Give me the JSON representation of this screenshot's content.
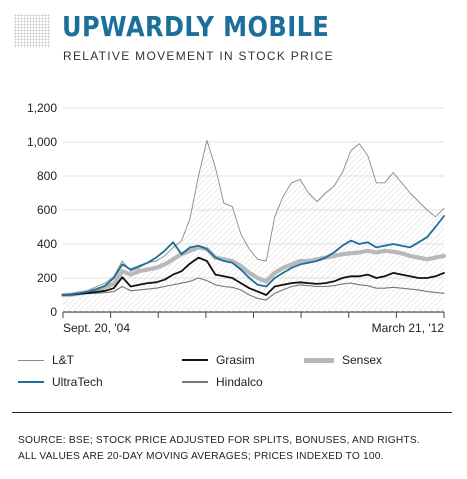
{
  "header": {
    "title": "UPWARDLY MOBILE",
    "subtitle": "RELATIVE MOVEMENT IN STOCK PRICE"
  },
  "chart_data": {
    "type": "line",
    "x_start_label": "Sept. 20, '04",
    "x_end_label": "March 21, '12",
    "y_ticks": [
      "0",
      "200",
      "400",
      "600",
      "800",
      "1,000",
      "1,200"
    ],
    "ylim": [
      0,
      1200
    ],
    "grid": "horizontal",
    "legend_position": "bottom",
    "x": [
      0,
      2,
      4,
      6,
      8,
      10,
      12,
      14,
      16,
      18,
      20,
      22,
      24,
      26,
      28,
      30,
      32,
      34,
      36,
      38,
      40,
      42,
      44,
      46,
      48,
      50,
      52,
      54,
      56,
      58,
      60,
      62,
      64,
      66,
      68,
      70,
      72,
      74,
      76,
      78,
      80,
      82,
      84,
      86,
      88,
      90
    ],
    "series": [
      {
        "name": "L&T",
        "color": "#8a8a8a",
        "width": 0.9,
        "values": [
          100,
          105,
          115,
          130,
          150,
          170,
          210,
          300,
          240,
          260,
          290,
          300,
          330,
          380,
          420,
          550,
          800,
          1010,
          850,
          640,
          620,
          460,
          370,
          310,
          300,
          560,
          680,
          760,
          780,
          700,
          650,
          700,
          740,
          820,
          950,
          990,
          920,
          760,
          760,
          820,
          760,
          700,
          650,
          600,
          560,
          610
        ]
      },
      {
        "name": "Grasim",
        "color": "#111111",
        "width": 1.8,
        "values": [
          100,
          102,
          108,
          112,
          118,
          125,
          140,
          205,
          150,
          160,
          170,
          175,
          190,
          220,
          240,
          285,
          320,
          300,
          220,
          210,
          200,
          170,
          140,
          120,
          100,
          150,
          160,
          170,
          175,
          170,
          165,
          170,
          180,
          200,
          210,
          210,
          220,
          200,
          210,
          230,
          220,
          210,
          200,
          200,
          210,
          230
        ]
      },
      {
        "name": "Sensex",
        "color": "#b8b8b8",
        "width": 4.2,
        "values": [
          100,
          102,
          110,
          118,
          130,
          145,
          165,
          240,
          220,
          240,
          250,
          260,
          280,
          310,
          340,
          360,
          380,
          370,
          320,
          310,
          300,
          270,
          230,
          200,
          180,
          230,
          260,
          280,
          300,
          300,
          310,
          320,
          330,
          340,
          345,
          350,
          360,
          350,
          360,
          355,
          345,
          330,
          320,
          310,
          320,
          330
        ]
      },
      {
        "name": "UltraTech",
        "color": "#1b6f98",
        "width": 1.8,
        "values": [
          100,
          104,
          112,
          120,
          135,
          155,
          200,
          280,
          250,
          270,
          290,
          320,
          360,
          410,
          340,
          380,
          390,
          370,
          320,
          300,
          290,
          250,
          200,
          160,
          150,
          200,
          230,
          260,
          280,
          290,
          300,
          320,
          350,
          390,
          420,
          400,
          410,
          380,
          390,
          400,
          390,
          380,
          410,
          440,
          500,
          565
        ]
      },
      {
        "name": "Hindalco",
        "color": "#777777",
        "width": 1.1,
        "values": [
          100,
          101,
          104,
          108,
          110,
          114,
          120,
          150,
          125,
          130,
          135,
          140,
          150,
          160,
          170,
          180,
          200,
          185,
          160,
          150,
          145,
          130,
          100,
          80,
          70,
          110,
          130,
          150,
          160,
          155,
          150,
          150,
          155,
          165,
          170,
          160,
          155,
          140,
          140,
          145,
          140,
          135,
          130,
          120,
          115,
          110
        ]
      }
    ]
  },
  "legend": {
    "items": [
      {
        "label": "L&T",
        "color": "#8a8a8a",
        "stroke": 1
      },
      {
        "label": "Grasim",
        "color": "#111111",
        "stroke": 2.5
      },
      {
        "label": "Sensex",
        "color": "#b8b8b8",
        "stroke": 5
      },
      {
        "label": "UltraTech",
        "color": "#1b6f98",
        "stroke": 2.5
      },
      {
        "label": "Hindalco",
        "color": "#777777",
        "stroke": 2
      }
    ]
  },
  "source": {
    "line1": "SOURCE: BSE; STOCK PRICE ADJUSTED FOR SPLITS, BONUSES, AND RIGHTS.",
    "line2": "ALL VALUES ARE 20-DAY MOVING AVERAGES; PRICES INDEXED TO 100."
  }
}
